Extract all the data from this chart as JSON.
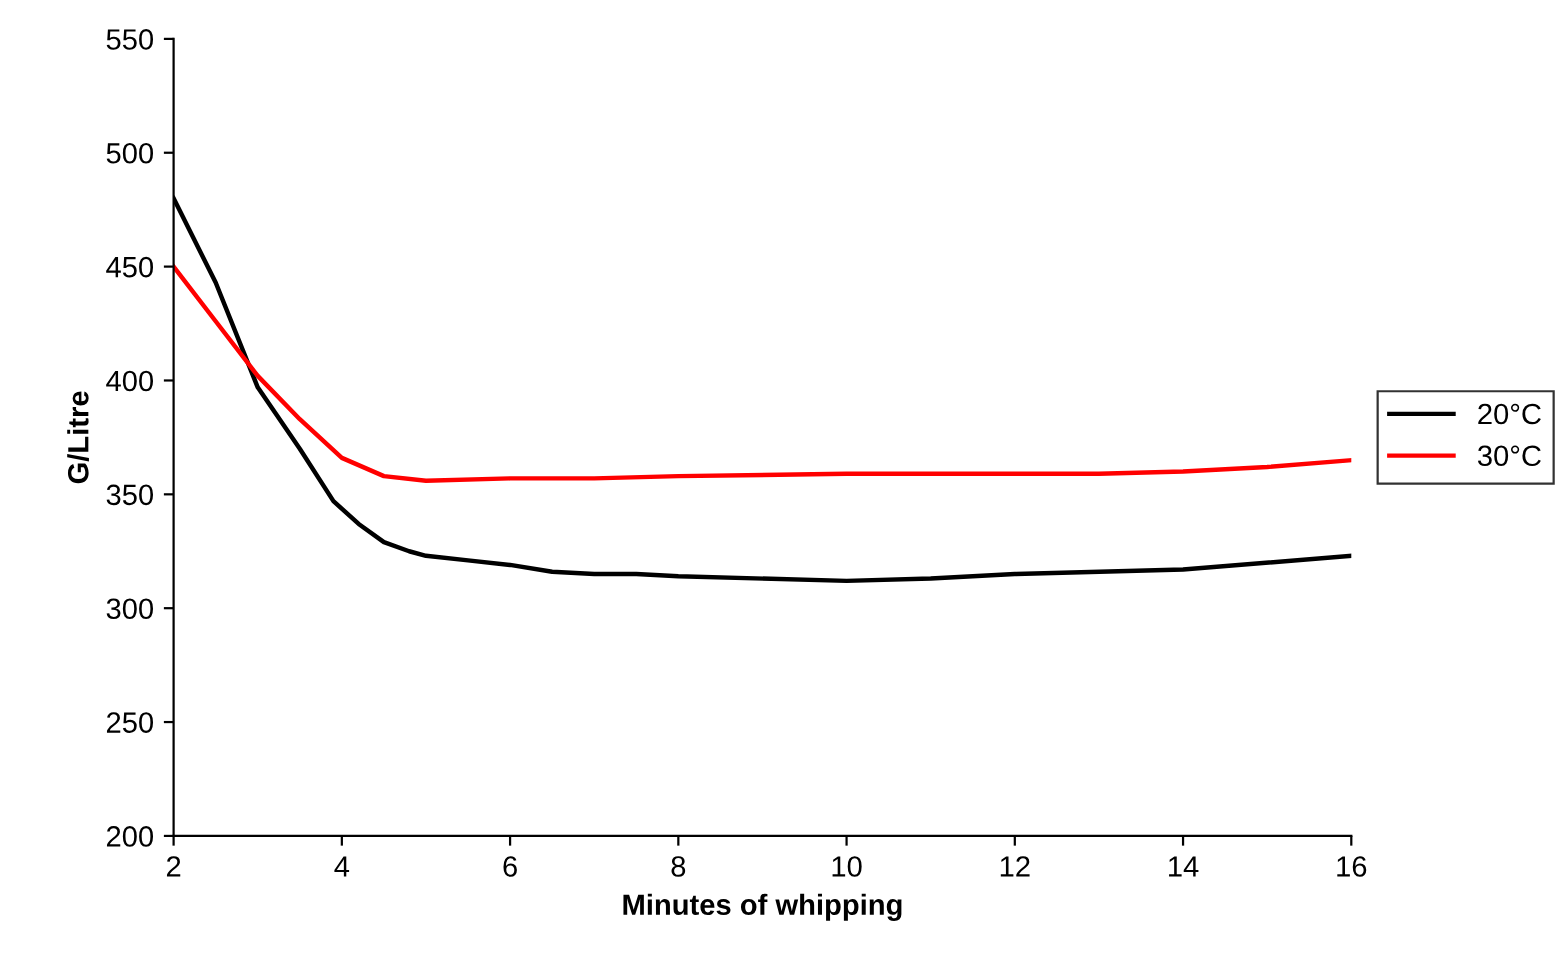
{
  "chart_data": {
    "type": "line",
    "xlabel": "Minutes of whipping",
    "ylabel": "G/Litre",
    "xlim": [
      2,
      16
    ],
    "xticks": [
      2,
      4,
      6,
      8,
      10,
      12,
      14,
      16
    ],
    "ylim": [
      200,
      550
    ],
    "yticks": [
      200,
      250,
      300,
      350,
      400,
      450,
      500,
      550
    ],
    "grid": false,
    "legend": "right",
    "marker": "none",
    "line_style": "solid",
    "series": [
      {
        "name": "20°C",
        "color": "#000000",
        "x": [
          2,
          2.5,
          3,
          3.5,
          3.9,
          4.2,
          4.5,
          4.8,
          5,
          5.5,
          6,
          6.5,
          7,
          7.5,
          8,
          10,
          11,
          12,
          14,
          16
        ],
        "values": [
          480,
          443,
          397,
          370,
          347,
          337,
          329,
          325,
          323,
          321,
          319,
          316,
          315,
          315,
          314,
          312,
          313,
          315,
          317,
          323
        ]
      },
      {
        "name": "30°C",
        "color": "#ff0000",
        "x": [
          2,
          2.5,
          3,
          3.5,
          4,
          4.5,
          5,
          6,
          7,
          8,
          10,
          12,
          13,
          14,
          15,
          16
        ],
        "values": [
          450,
          426,
          402,
          383,
          366,
          358,
          356,
          357,
          357,
          358,
          359,
          359,
          359,
          360,
          362,
          365
        ]
      }
    ]
  }
}
